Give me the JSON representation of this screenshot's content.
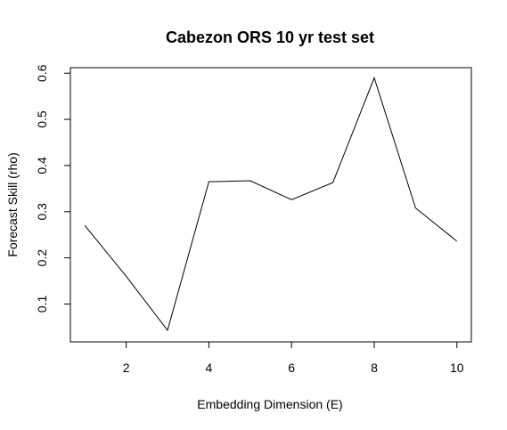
{
  "chart_data": {
    "type": "line",
    "title": "Cabezon ORS 10 yr test set",
    "xlabel": "Embedding Dimension (E)",
    "ylabel": "Forecast Skill (rho)",
    "xlim": [
      0.65,
      10.35
    ],
    "ylim": [
      0.018,
      0.612
    ],
    "xticks": [
      2,
      4,
      6,
      8,
      10
    ],
    "yticks": [
      0.1,
      0.2,
      0.3,
      0.4,
      0.5,
      0.6
    ],
    "grid": false,
    "series": [
      {
        "x": [
          1,
          2,
          3,
          4,
          5,
          6,
          7,
          8,
          9,
          10
        ],
        "values": [
          0.27,
          0.16,
          0.043,
          0.365,
          0.367,
          0.326,
          0.363,
          0.59,
          0.308,
          0.236
        ],
        "color": "#000000"
      }
    ]
  }
}
